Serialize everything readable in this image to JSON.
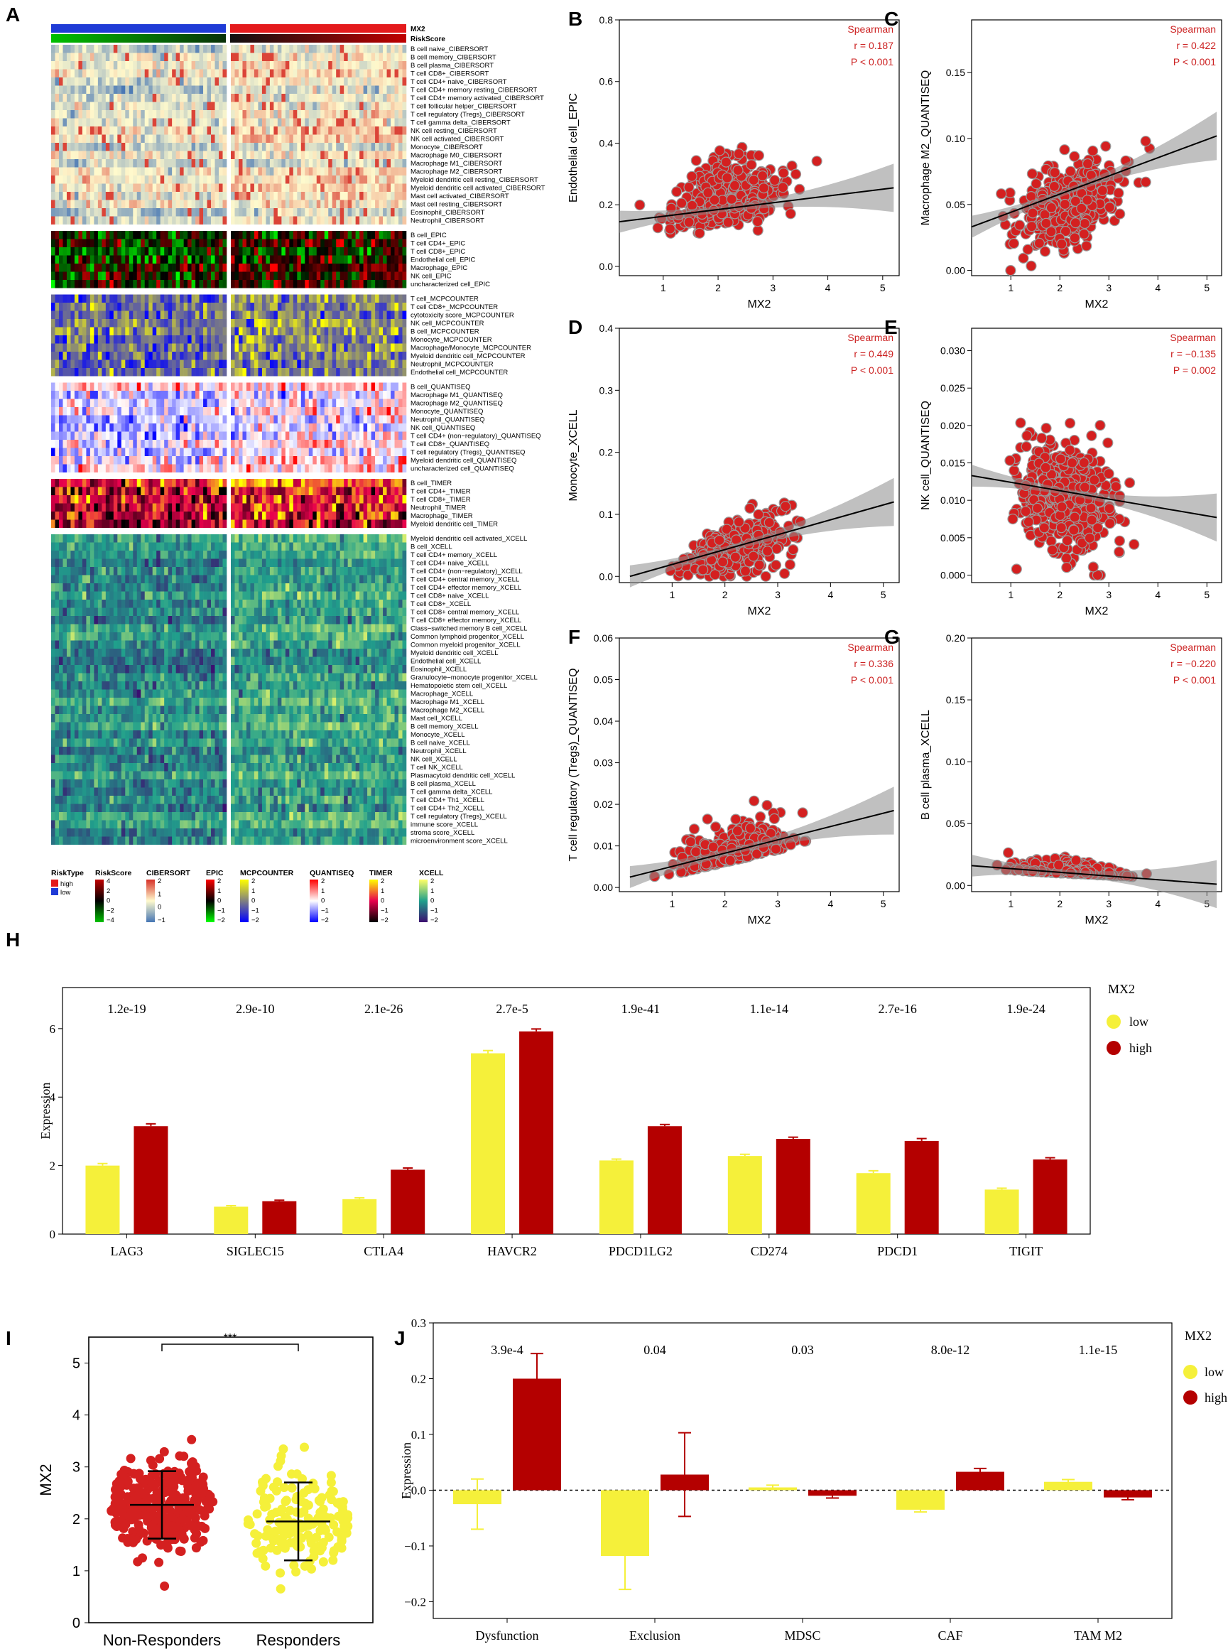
{
  "colors": {
    "high": "#e41a1c",
    "low": "#1f3bd6",
    "red_pt": "#d42020",
    "dark_red": "#b40000",
    "yellow": "#f5f03a",
    "stat_red": "#cc2222"
  },
  "panel_a": {
    "letter": "A",
    "annot_labels": [
      "MX2",
      "RiskScore"
    ],
    "sections": [
      {
        "key": "cibersort",
        "rows": [
          "B cell naive_CIBERSORT",
          "B cell memory_CIBERSORT",
          "B cell plasma_CIBERSORT",
          "T cell CD8+_CIBERSORT",
          "T cell CD4+ naive_CIBERSORT",
          "T cell CD4+ memory resting_CIBERSORT",
          "T cell CD4+ memory activated_CIBERSORT",
          "T cell follicular helper_CIBERSORT",
          "T cell regulatory (Tregs)_CIBERSORT",
          "T cell gamma delta_CIBERSORT",
          "NK cell resting_CIBERSORT",
          "NK cell activated_CIBERSORT",
          "Monocyte_CIBERSORT",
          "Macrophage M0_CIBERSORT",
          "Macrophage M1_CIBERSORT",
          "Macrophage M2_CIBERSORT",
          "Myeloid dendritic cell resting_CIBERSORT",
          "Myeloid dendritic cell activated_CIBERSORT",
          "Mast cell activated_CIBERSORT",
          "Mast cell resting_CIBERSORT",
          "Eosinophil_CIBERSORT",
          "Neutrophil_CIBERSORT"
        ]
      },
      {
        "key": "epic",
        "rows": [
          "B cell_EPIC",
          "T cell CD4+_EPIC",
          "T cell CD8+_EPIC",
          "Endothelial cell_EPIC",
          "Macrophage_EPIC",
          "NK cell_EPIC",
          "uncharacterized cell_EPIC"
        ]
      },
      {
        "key": "mcp",
        "rows": [
          "T cell_MCPCOUNTER",
          "T cell CD8+_MCPCOUNTER",
          "cytotoxicity score_MCPCOUNTER",
          "NK cell_MCPCOUNTER",
          "B cell_MCPCOUNTER",
          "Monocyte_MCPCOUNTER",
          "Macrophage/Monocyte_MCPCOUNTER",
          "Myeloid dendritic cell_MCPCOUNTER",
          "Neutrophil_MCPCOUNTER",
          "Endothelial cell_MCPCOUNTER"
        ]
      },
      {
        "key": "quantiseq",
        "rows": [
          "B cell_QUANTISEQ",
          "Macrophage M1_QUANTISEQ",
          "Macrophage M2_QUANTISEQ",
          "Monocyte_QUANTISEQ",
          "Neutrophil_QUANTISEQ",
          "NK cell_QUANTISEQ",
          "T cell CD4+ (non−regulatory)_QUANTISEQ",
          "T cell CD8+_QUANTISEQ",
          "T cell regulatory (Tregs)_QUANTISEQ",
          "Myeloid dendritic cell_QUANTISEQ",
          "uncharacterized cell_QUANTISEQ"
        ]
      },
      {
        "key": "timer",
        "rows": [
          "B cell_TIMER",
          "T cell CD4+_TIMER",
          "T cell CD8+_TIMER",
          "Neutrophil_TIMER",
          "Macrophage_TIMER",
          "Myeloid dendritic cell_TIMER"
        ]
      },
      {
        "key": "xcell",
        "rows": [
          "Myeloid dendritic cell activated_XCELL",
          "B cell_XCELL",
          "T cell CD4+ memory_XCELL",
          "T cell CD4+ naive_XCELL",
          "T cell CD4+ (non−regulatory)_XCELL",
          "T cell CD4+ central memory_XCELL",
          "T cell CD4+ effector memory_XCELL",
          "T cell CD8+ naive_XCELL",
          "T cell CD8+_XCELL",
          "T cell CD8+ central memory_XCELL",
          "T cell CD8+ effector memory_XCELL",
          "Class−switched memory B cell_XCELL",
          "Common lymphoid progenitor_XCELL",
          "Common myeloid progenitor_XCELL",
          "Myeloid dendritic cell_XCELL",
          "Endothelial cell_XCELL",
          "Eosinophil_XCELL",
          "Granulocyte−monocyte progenitor_XCELL",
          "Hematopoietic stem cell_XCELL",
          "Macrophage_XCELL",
          "Macrophage M1_XCELL",
          "Macrophage M2_XCELL",
          "Mast cell_XCELL",
          "B cell memory_XCELL",
          "Monocyte_XCELL",
          "B cell naive_XCELL",
          "Neutrophil_XCELL",
          "NK cell_XCELL",
          "T cell NK_XCELL",
          "Plasmacytoid dendritic cell_XCELL",
          "B cell plasma_XCELL",
          "T cell gamma delta_XCELL",
          "T cell CD4+ Th1_XCELL",
          "T cell CD4+ Th2_XCELL",
          "T cell regulatory (Tregs)_XCELL",
          "immune score_XCELL",
          "stroma score_XCELL",
          "microenvironment score_XCELL"
        ]
      }
    ],
    "legends": [
      {
        "title": "RiskType",
        "entries": [
          "high",
          "low"
        ]
      },
      {
        "title": "RiskScore",
        "ticks": [
          "4",
          "2",
          "0",
          "−2",
          "−4"
        ],
        "colors": [
          "#c00000",
          "#000000",
          "#00c000"
        ]
      },
      {
        "title": "CIBERSORT",
        "ticks": [
          "2",
          "1",
          "0",
          "−1"
        ],
        "colors": [
          "#d73027",
          "#fffacd",
          "#4575b4"
        ]
      },
      {
        "title": "EPIC",
        "ticks": [
          "2",
          "1",
          "0",
          "−1",
          "−2"
        ],
        "colors": [
          "#ff0000",
          "#000000",
          "#00ff00"
        ]
      },
      {
        "title": "MCPCOUNTER",
        "ticks": [
          "2",
          "1",
          "0",
          "−1",
          "−2"
        ],
        "colors": [
          "#ffff00",
          "#808080",
          "#0000ff"
        ]
      },
      {
        "title": "QUANTISEQ",
        "ticks": [
          "2",
          "1",
          "0",
          "−1",
          "−2"
        ],
        "colors": [
          "#ff0000",
          "#ffffff",
          "#0000ff"
        ]
      },
      {
        "title": "TIMER",
        "ticks": [
          "2",
          "1",
          "0",
          "−1",
          "−2"
        ],
        "colors": [
          "#ffff00",
          "#e8004d",
          "#000000"
        ]
      },
      {
        "title": "XCELL",
        "ticks": [
          "2",
          "1",
          "0",
          "−1",
          "−2"
        ],
        "colors": [
          "#ffff66",
          "#20a08c",
          "#3b0f70"
        ]
      }
    ]
  },
  "chart_data": [
    {
      "panel": "B",
      "type": "scatter",
      "xlabel": "MX2",
      "ylabel": "Endothelial cell_EPIC",
      "xticks": [
        "1",
        "2",
        "3",
        "4",
        "5"
      ],
      "yticks": [
        "0.0",
        "0.2",
        "0.4",
        "0.6",
        "0.8"
      ],
      "xlim": [
        0.2,
        5.3
      ],
      "ylim": [
        -0.03,
        0.8
      ],
      "fit": [
        [
          0.2,
          0.145
        ],
        [
          5.2,
          0.255
        ]
      ],
      "stats": [
        "Spearman",
        "r = 0.187",
        "P < 0.001"
      ],
      "n_points": 420
    },
    {
      "panel": "C",
      "type": "scatter",
      "xlabel": "MX2",
      "ylabel": "Macrophage M2_QUANTISEQ",
      "xticks": [
        "1",
        "2",
        "3",
        "4",
        "5"
      ],
      "yticks": [
        "0.00",
        "0.05",
        "0.10",
        "0.15"
      ],
      "xlim": [
        0.2,
        5.3
      ],
      "ylim": [
        -0.004,
        0.19
      ],
      "fit": [
        [
          0.2,
          0.033
        ],
        [
          5.2,
          0.102
        ]
      ],
      "stats": [
        "Spearman",
        "r = 0.422",
        "P < 0.001"
      ],
      "n_points": 420
    },
    {
      "panel": "D",
      "type": "scatter",
      "xlabel": "MX2",
      "ylabel": "Monocyte_XCELL",
      "xticks": [
        "1",
        "2",
        "3",
        "4",
        "5"
      ],
      "yticks": [
        "0.0",
        "0.1",
        "0.2",
        "0.3",
        "0.4"
      ],
      "xlim": [
        0.0,
        5.3
      ],
      "ylim": [
        -0.01,
        0.4
      ],
      "fit": [
        [
          0.2,
          0.0
        ],
        [
          5.2,
          0.12
        ]
      ],
      "stats": [
        "Spearman",
        "r = 0.449",
        "P < 0.001"
      ],
      "n_points": 420
    },
    {
      "panel": "E",
      "type": "scatter",
      "xlabel": "MX2",
      "ylabel": "NK cell_QUANTISEQ",
      "xticks": [
        "1",
        "2",
        "3",
        "4",
        "5"
      ],
      "yticks": [
        "0.000",
        "0.005",
        "0.010",
        "0.015",
        "0.020",
        "0.025",
        "0.030"
      ],
      "xlim": [
        0.2,
        5.3
      ],
      "ylim": [
        -0.001,
        0.033
      ],
      "fit": [
        [
          0.2,
          0.0133
        ],
        [
          5.2,
          0.0077
        ]
      ],
      "stats": [
        "Spearman",
        "r = −0.135",
        "P = 0.002"
      ],
      "n_points": 420
    },
    {
      "panel": "F",
      "type": "scatter",
      "xlabel": "MX2",
      "ylabel": "T cell regulatory (Tregs)_QUANTISEQ",
      "xticks": [
        "1",
        "2",
        "3",
        "4",
        "5"
      ],
      "yticks": [
        "0.00",
        "0.01",
        "0.02",
        "0.03",
        "0.04",
        "0.05",
        "0.06"
      ],
      "xlim": [
        0.0,
        5.3
      ],
      "ylim": [
        -0.001,
        0.06
      ],
      "fit": [
        [
          0.2,
          0.0025
        ],
        [
          5.2,
          0.0185
        ]
      ],
      "stats": [
        "Spearman",
        "r = 0.336",
        "P < 0.001"
      ],
      "n_points": 420
    },
    {
      "panel": "G",
      "type": "scatter",
      "xlabel": "MX2",
      "ylabel": "B cell plasma_XCELL",
      "xticks": [
        "1",
        "2",
        "3",
        "4",
        "5"
      ],
      "yticks": [
        "0.00",
        "0.05",
        "0.10",
        "0.15",
        "0.20"
      ],
      "xlim": [
        0.2,
        5.3
      ],
      "ylim": [
        -0.005,
        0.2
      ],
      "fit": [
        [
          0.2,
          0.016
        ],
        [
          5.2,
          0.001
        ]
      ],
      "stats": [
        "Spearman",
        "r = −0.220",
        "P < 0.001"
      ],
      "n_points": 420
    },
    {
      "panel": "H",
      "type": "bar",
      "categories": [
        "LAG3",
        "SIGLEC15",
        "CTLA4",
        "HAVCR2",
        "PDCD1LG2",
        "CD274",
        "PDCD1",
        "TIGIT"
      ],
      "series": [
        {
          "name": "low",
          "values": [
            2.0,
            0.8,
            1.02,
            5.28,
            2.15,
            2.28,
            1.78,
            1.3
          ],
          "err": [
            0.06,
            0.03,
            0.04,
            0.08,
            0.04,
            0.05,
            0.07,
            0.04
          ]
        },
        {
          "name": "high",
          "values": [
            3.15,
            0.96,
            1.88,
            5.92,
            3.15,
            2.78,
            2.72,
            2.18
          ],
          "err": [
            0.07,
            0.03,
            0.05,
            0.07,
            0.05,
            0.05,
            0.07,
            0.05
          ]
        }
      ],
      "pvalues": [
        "1.2e-19",
        "2.9e-10",
        "2.1e-26",
        "2.7e-5",
        "1.9e-41",
        "1.1e-14",
        "2.7e-16",
        "1.9e-24"
      ],
      "ylabel": "Expression",
      "yticks": [
        "0",
        "2",
        "4",
        "6"
      ],
      "ylim": [
        0,
        7.2
      ],
      "legend_title": "MX2"
    },
    {
      "panel": "I",
      "type": "scatter",
      "categories": [
        "Non-Responders",
        "Responders"
      ],
      "means": [
        2.27,
        1.95
      ],
      "sd": [
        [
          1.62,
          2.92
        ],
        [
          1.2,
          2.7
        ]
      ],
      "ylabel": "MX2",
      "yticks": [
        "0",
        "1",
        "2",
        "3",
        "4",
        "5"
      ],
      "ylim": [
        0,
        5.5
      ],
      "signif": "***",
      "n_points": [
        320,
        170
      ]
    },
    {
      "panel": "J",
      "type": "bar",
      "categories": [
        "Dysfunction",
        "Exclusion",
        "MDSC",
        "CAF",
        "TAM M2"
      ],
      "series": [
        {
          "name": "low",
          "values": [
            -0.025,
            -0.118,
            0.005,
            -0.035,
            0.015
          ],
          "err": [
            0.045,
            0.06,
            0.004,
            0.004,
            0.004
          ]
        },
        {
          "name": "high",
          "values": [
            0.2,
            0.028,
            -0.01,
            0.033,
            -0.013
          ],
          "err": [
            0.045,
            0.075,
            0.004,
            0.006,
            0.004
          ]
        }
      ],
      "pvalues": [
        "3.9e-4",
        "0.04",
        "0.03",
        "8.0e-12",
        "1.1e-15"
      ],
      "ylabel": "Expression",
      "yticks": [
        "−0.2",
        "−0.1",
        "0.0",
        "0.1",
        "0.2",
        "0.3"
      ],
      "ylim": [
        -0.23,
        0.3
      ],
      "legend_title": "MX2"
    }
  ]
}
